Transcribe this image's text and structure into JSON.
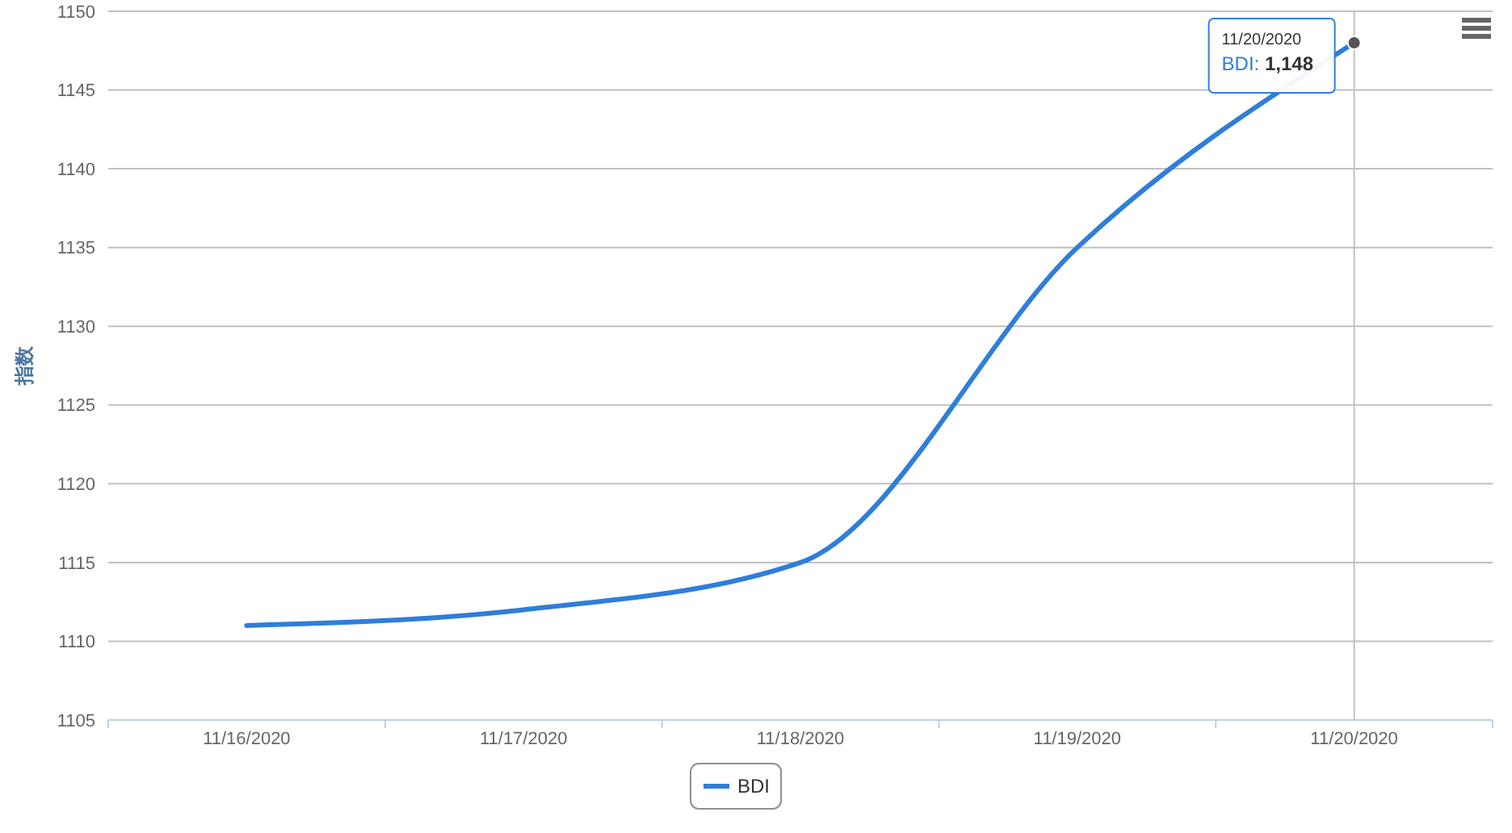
{
  "chart_data": {
    "type": "line",
    "ylabel": "指数",
    "categories": [
      "11/16/2020",
      "11/17/2020",
      "11/18/2020",
      "11/19/2020",
      "11/20/2020"
    ],
    "series": [
      {
        "name": "BDI",
        "color": "#2f7ed8",
        "values": [
          1111,
          1112,
          1115,
          1135,
          1148
        ]
      }
    ],
    "ylim": [
      1105,
      1150
    ],
    "yticks": [
      1105,
      1110,
      1115,
      1120,
      1125,
      1130,
      1135,
      1140,
      1145,
      1150
    ],
    "grid": "y",
    "ref_lines": [
      {
        "axis": "x",
        "value": "11/20/2020",
        "color": "#c0c0c0"
      }
    ],
    "legend": "bottom",
    "marker": "none",
    "line_style": "solid",
    "annotations": [
      {
        "text": "11/20/2020\nBDI: 1,148",
        "x": "11/20/2020",
        "y": 1148
      }
    ]
  }
}
